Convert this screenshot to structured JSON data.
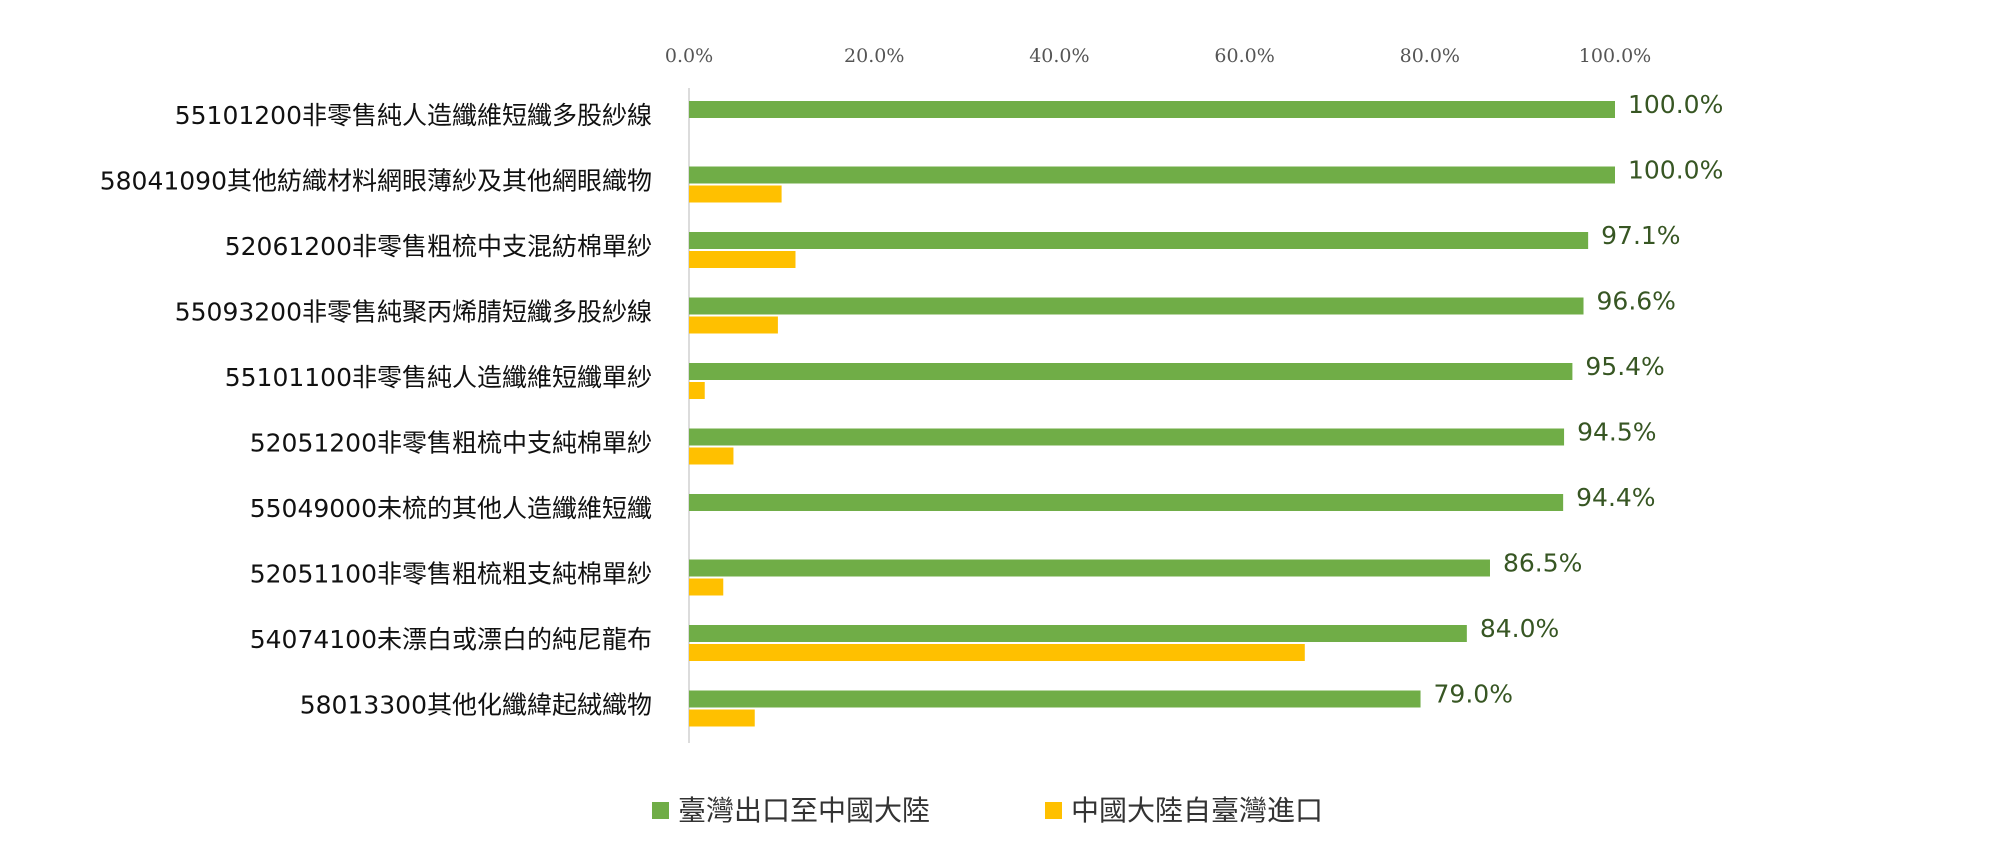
{
  "chart_data": {
    "type": "bar",
    "orientation": "horizontal",
    "categories": [
      "55101200非零售純人造纖維短纖多股紗線",
      "58041090其他紡織材料網眼薄紗及其他網眼織物",
      "52061200非零售粗梳中支混紡棉單紗",
      "55093200非零售純聚丙烯腈短纖多股紗線",
      "55101100非零售純人造纖維短纖單紗",
      "52051200非零售粗梳中支純棉單紗",
      "55049000未梳的其他人造纖維短纖",
      "52051100非零售粗梳粗支純棉單紗",
      "54074100未漂白或漂白的純尼龍布",
      "58013300其他化纖緯起絨織物"
    ],
    "series": [
      {
        "name": "臺灣出口至中國大陸",
        "color": "#70ad47",
        "values": [
          100.0,
          100.0,
          97.1,
          96.6,
          95.4,
          94.5,
          94.4,
          86.5,
          84.0,
          79.0
        ],
        "data_labels": [
          "100.0%",
          "100.0%",
          "97.1%",
          "96.6%",
          "95.4%",
          "94.5%",
          "94.4%",
          "86.5%",
          "84.0%",
          "79.0%"
        ]
      },
      {
        "name": "中國大陸自臺灣進口",
        "color": "#ffc000",
        "values": [
          0.0,
          10.0,
          11.5,
          9.6,
          1.7,
          4.8,
          0.0,
          3.7,
          66.5,
          7.1
        ]
      }
    ],
    "xlim": [
      0,
      100
    ],
    "xticks": [
      "0.0%",
      "20.0%",
      "40.0%",
      "60.0%",
      "80.0%",
      "100.0%"
    ],
    "x_axis_position": "top",
    "label_color": "#375623",
    "grid": false,
    "legend_position": "bottom-center"
  }
}
